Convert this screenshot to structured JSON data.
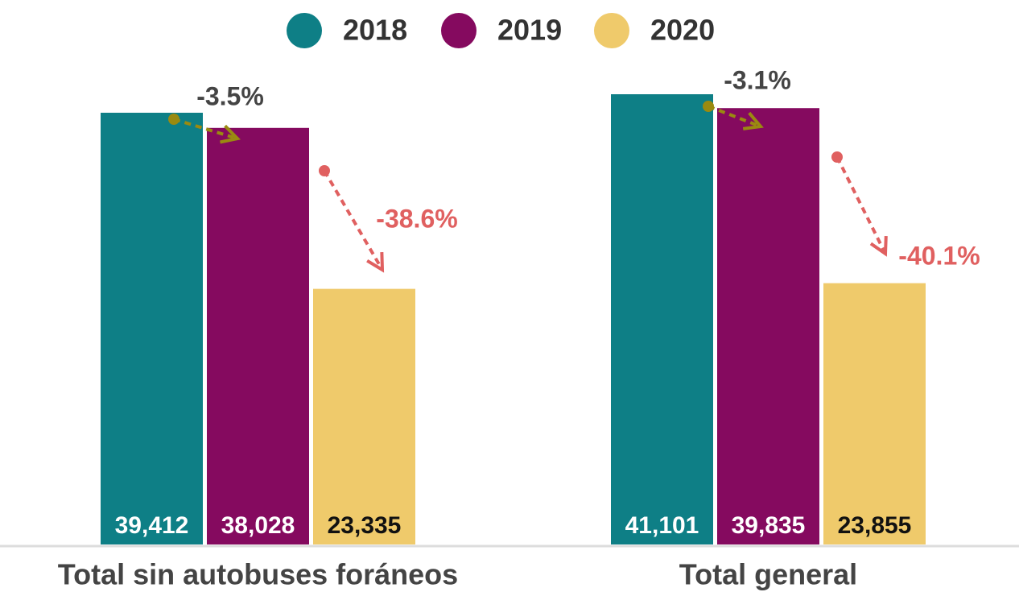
{
  "chart_data": {
    "type": "bar",
    "categories": [
      "Total sin autobuses foráneos",
      "Total general"
    ],
    "series": [
      {
        "name": "2018",
        "color": "#0e7f86",
        "values": [
          39412,
          41101
        ],
        "value_labels": [
          "39,412",
          "41,101"
        ]
      },
      {
        "name": "2019",
        "color": "#850a5f",
        "values": [
          38028,
          39835
        ],
        "value_labels": [
          "38,028",
          "39,835"
        ]
      },
      {
        "name": "2020",
        "color": "#efca6b",
        "values": [
          23335,
          23855
        ],
        "value_labels": [
          "23,335",
          "23,855"
        ]
      }
    ],
    "annotations": [
      {
        "text": "-3.5%",
        "color": "#9a8a10"
      },
      {
        "text": "-38.6%",
        "color": "#e06060"
      },
      {
        "text": "-3.1%",
        "color": "#9a8a10"
      },
      {
        "text": "-40.1%",
        "color": "#e06060"
      }
    ],
    "legend": "top"
  }
}
